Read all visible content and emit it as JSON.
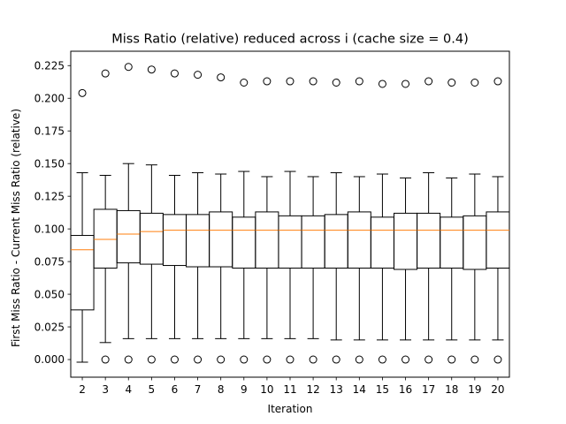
{
  "chart_data": {
    "type": "box",
    "title": "Miss Ratio (relative) reduced across i (cache size = 0.4)",
    "xlabel": "Iteration",
    "ylabel": "First Miss Ratio - Current Miss Ratio (relative)",
    "ylim": [
      -0.0135,
      0.236
    ],
    "yticks": [
      "0.000",
      "0.025",
      "0.050",
      "0.075",
      "0.100",
      "0.125",
      "0.150",
      "0.175",
      "0.200",
      "0.225"
    ],
    "categories": [
      "2",
      "3",
      "4",
      "5",
      "6",
      "7",
      "8",
      "9",
      "10",
      "11",
      "12",
      "13",
      "14",
      "15",
      "16",
      "17",
      "18",
      "19",
      "20"
    ],
    "grid": false,
    "median_color": "#ff7f0e",
    "box_color": "#000000",
    "boxes": [
      {
        "whislo": -0.002,
        "q1": 0.038,
        "med": 0.084,
        "q3": 0.095,
        "whishi": 0.143,
        "fliers": [
          0.204
        ]
      },
      {
        "whislo": 0.013,
        "q1": 0.07,
        "med": 0.092,
        "q3": 0.115,
        "whishi": 0.141,
        "fliers": [
          0.0,
          0.219
        ]
      },
      {
        "whislo": 0.016,
        "q1": 0.074,
        "med": 0.096,
        "q3": 0.114,
        "whishi": 0.15,
        "fliers": [
          0.0,
          0.224
        ]
      },
      {
        "whislo": 0.016,
        "q1": 0.073,
        "med": 0.098,
        "q3": 0.112,
        "whishi": 0.149,
        "fliers": [
          0.0,
          0.222
        ]
      },
      {
        "whislo": 0.016,
        "q1": 0.072,
        "med": 0.099,
        "q3": 0.111,
        "whishi": 0.141,
        "fliers": [
          0.0,
          0.219
        ]
      },
      {
        "whislo": 0.016,
        "q1": 0.071,
        "med": 0.099,
        "q3": 0.111,
        "whishi": 0.143,
        "fliers": [
          0.0,
          0.218
        ]
      },
      {
        "whislo": 0.016,
        "q1": 0.071,
        "med": 0.099,
        "q3": 0.113,
        "whishi": 0.142,
        "fliers": [
          0.0,
          0.216
        ]
      },
      {
        "whislo": 0.016,
        "q1": 0.07,
        "med": 0.099,
        "q3": 0.109,
        "whishi": 0.144,
        "fliers": [
          0.0,
          0.212
        ]
      },
      {
        "whislo": 0.016,
        "q1": 0.07,
        "med": 0.099,
        "q3": 0.113,
        "whishi": 0.14,
        "fliers": [
          0.0,
          0.213
        ]
      },
      {
        "whislo": 0.016,
        "q1": 0.07,
        "med": 0.099,
        "q3": 0.11,
        "whishi": 0.144,
        "fliers": [
          0.0,
          0.213
        ]
      },
      {
        "whislo": 0.016,
        "q1": 0.07,
        "med": 0.099,
        "q3": 0.11,
        "whishi": 0.14,
        "fliers": [
          0.0,
          0.213
        ]
      },
      {
        "whislo": 0.015,
        "q1": 0.07,
        "med": 0.099,
        "q3": 0.111,
        "whishi": 0.143,
        "fliers": [
          0.0,
          0.212
        ]
      },
      {
        "whislo": 0.015,
        "q1": 0.07,
        "med": 0.099,
        "q3": 0.113,
        "whishi": 0.14,
        "fliers": [
          0.0,
          0.213
        ]
      },
      {
        "whislo": 0.015,
        "q1": 0.07,
        "med": 0.099,
        "q3": 0.109,
        "whishi": 0.142,
        "fliers": [
          0.0,
          0.211
        ]
      },
      {
        "whislo": 0.015,
        "q1": 0.069,
        "med": 0.099,
        "q3": 0.112,
        "whishi": 0.139,
        "fliers": [
          0.0,
          0.211
        ]
      },
      {
        "whislo": 0.015,
        "q1": 0.07,
        "med": 0.099,
        "q3": 0.112,
        "whishi": 0.143,
        "fliers": [
          0.0,
          0.213
        ]
      },
      {
        "whislo": 0.015,
        "q1": 0.07,
        "med": 0.099,
        "q3": 0.109,
        "whishi": 0.139,
        "fliers": [
          0.0,
          0.212
        ]
      },
      {
        "whislo": 0.015,
        "q1": 0.069,
        "med": 0.099,
        "q3": 0.11,
        "whishi": 0.142,
        "fliers": [
          0.0,
          0.212
        ]
      },
      {
        "whislo": 0.015,
        "q1": 0.07,
        "med": 0.099,
        "q3": 0.113,
        "whishi": 0.14,
        "fliers": [
          0.0,
          0.213
        ]
      }
    ]
  }
}
